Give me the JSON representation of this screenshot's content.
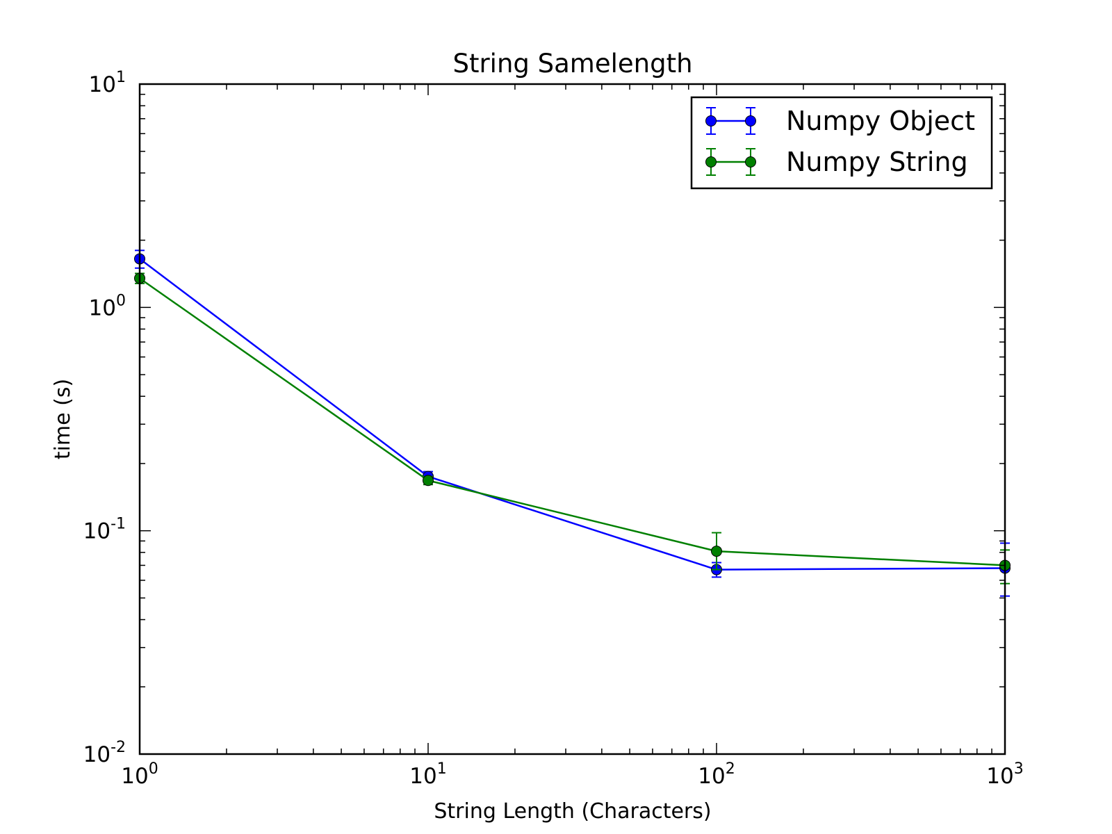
{
  "chart_data": {
    "type": "line",
    "title": "String Samelength",
    "xlabel": "String Length (Characters)",
    "ylabel": "time (s)",
    "xscale": "log",
    "yscale": "log",
    "xlim": [
      1,
      1000
    ],
    "ylim": [
      0.01,
      10
    ],
    "x_ticks": [
      {
        "value": 1,
        "base": "10",
        "exp": "0"
      },
      {
        "value": 10,
        "base": "10",
        "exp": "1"
      },
      {
        "value": 100,
        "base": "10",
        "exp": "2"
      },
      {
        "value": 1000,
        "base": "10",
        "exp": "3"
      }
    ],
    "y_ticks": [
      {
        "value": 0.01,
        "base": "10",
        "exp": "-2"
      },
      {
        "value": 0.1,
        "base": "10",
        "exp": "-1"
      },
      {
        "value": 1,
        "base": "10",
        "exp": "0"
      },
      {
        "value": 10,
        "base": "10",
        "exp": "1"
      }
    ],
    "grid": false,
    "legend_position": "top-right",
    "x": [
      1,
      10,
      100,
      1000
    ],
    "series": [
      {
        "name": "Numpy Object",
        "color": "#0000ff",
        "values": [
          1.65,
          0.175,
          0.067,
          0.068
        ],
        "err_low": [
          1.5,
          0.166,
          0.062,
          0.051
        ],
        "err_high": [
          1.8,
          0.184,
          0.072,
          0.088
        ]
      },
      {
        "name": "Numpy String",
        "color": "#008000",
        "values": [
          1.35,
          0.168,
          0.081,
          0.07
        ],
        "err_low": [
          1.28,
          0.161,
          0.067,
          0.058
        ],
        "err_high": [
          1.42,
          0.175,
          0.098,
          0.082
        ]
      }
    ]
  }
}
